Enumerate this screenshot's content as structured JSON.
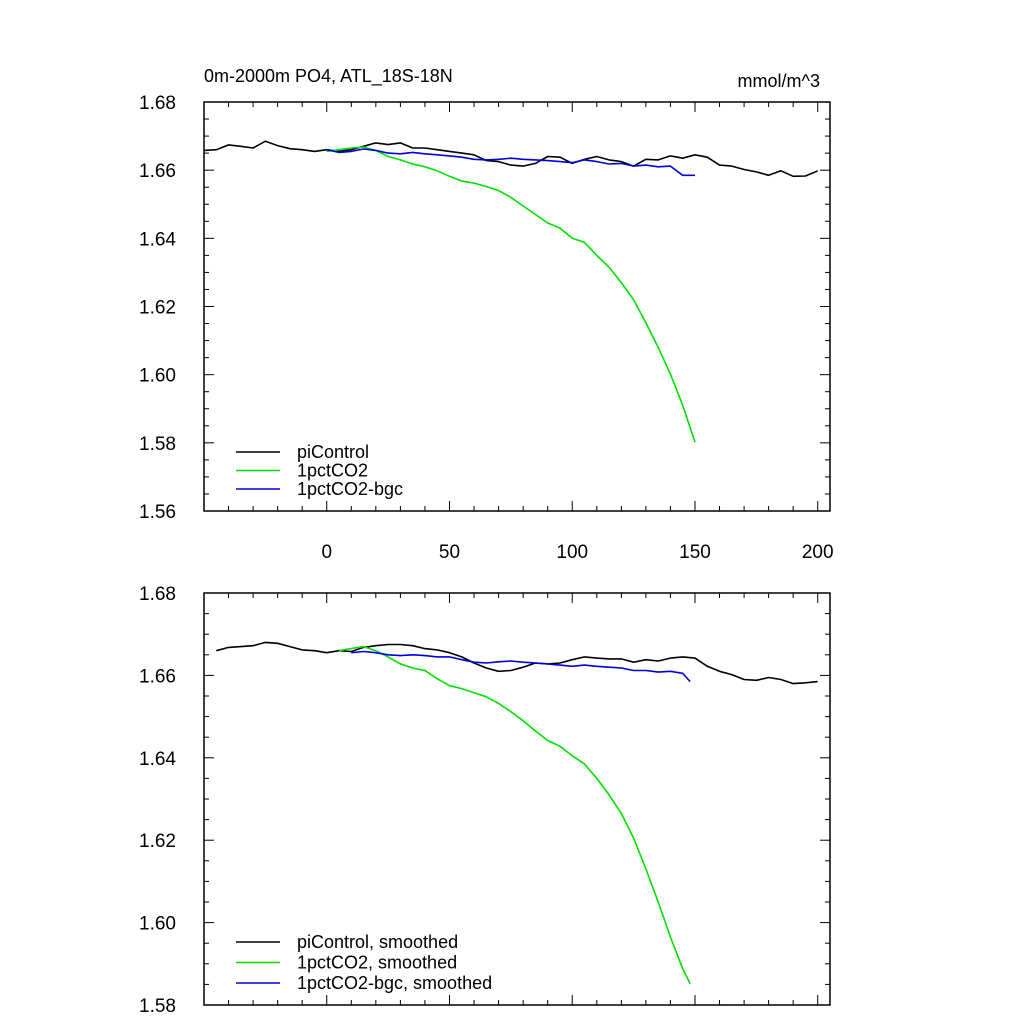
{
  "chart_data": [
    {
      "type": "line",
      "title": "0m-2000m PO4, ATL_18S-18N",
      "units": "mmol/m^3",
      "xlim": [
        -50,
        205
      ],
      "ylim": [
        1.56,
        1.68
      ],
      "x_ticks": [
        0,
        50,
        100,
        150,
        200
      ],
      "x_tick_labels": [
        "0",
        "50",
        "100",
        "150",
        "200"
      ],
      "y_ticks": [
        1.56,
        1.58,
        1.6,
        1.62,
        1.64,
        1.66,
        1.68
      ],
      "y_tick_labels": [
        "1.56",
        "1.58",
        "1.60",
        "1.62",
        "1.64",
        "1.66",
        "1.68"
      ],
      "legend_position": "bottom-left",
      "series": [
        {
          "name": "piControl",
          "color": "#000000",
          "x": [
            -50,
            -45,
            -40,
            -35,
            -30,
            -25,
            -20,
            -15,
            -10,
            -5,
            0,
            5,
            10,
            15,
            20,
            25,
            30,
            35,
            40,
            45,
            50,
            55,
            60,
            65,
            70,
            75,
            80,
            85,
            90,
            95,
            100,
            105,
            110,
            115,
            120,
            125,
            130,
            135,
            140,
            145,
            150,
            155,
            160,
            165,
            170,
            175,
            180,
            185,
            190,
            195,
            200
          ],
          "y": [
            1.6658,
            1.666,
            1.6674,
            1.667,
            1.6665,
            1.6685,
            1.6672,
            1.6663,
            1.666,
            1.6655,
            1.666,
            1.6655,
            1.666,
            1.667,
            1.668,
            1.6675,
            1.668,
            1.6665,
            1.6665,
            1.666,
            1.6655,
            1.665,
            1.6645,
            1.6628,
            1.6625,
            1.6615,
            1.6612,
            1.662,
            1.664,
            1.6638,
            1.662,
            1.6632,
            1.664,
            1.663,
            1.6625,
            1.6612,
            1.6632,
            1.663,
            1.6642,
            1.6635,
            1.6645,
            1.6638,
            1.6615,
            1.6612,
            1.6602,
            1.6595,
            1.6585,
            1.6598,
            1.6582,
            1.6583,
            1.6598
          ]
        },
        {
          "name": "1pctCO2",
          "color": "#00e000",
          "x": [
            0,
            5,
            10,
            15,
            20,
            25,
            30,
            35,
            40,
            45,
            50,
            55,
            60,
            65,
            70,
            75,
            80,
            85,
            90,
            95,
            100,
            105,
            110,
            115,
            120,
            125,
            130,
            135,
            140,
            145,
            150
          ],
          "y": [
            1.6655,
            1.666,
            1.6665,
            1.6668,
            1.6658,
            1.664,
            1.663,
            1.6618,
            1.661,
            1.6598,
            1.6582,
            1.6568,
            1.6562,
            1.6552,
            1.654,
            1.652,
            1.6495,
            1.647,
            1.6445,
            1.643,
            1.64,
            1.6388,
            1.635,
            1.6315,
            1.627,
            1.622,
            1.6152,
            1.608,
            1.6002,
            1.591,
            1.5802
          ]
        },
        {
          "name": "1pctCO2-bgc",
          "color": "#0000dd",
          "x": [
            0,
            5,
            10,
            15,
            20,
            25,
            30,
            35,
            40,
            45,
            50,
            55,
            60,
            65,
            70,
            75,
            80,
            85,
            90,
            95,
            100,
            105,
            110,
            115,
            120,
            125,
            130,
            135,
            140,
            145,
            150
          ],
          "y": [
            1.666,
            1.6652,
            1.6655,
            1.6662,
            1.6658,
            1.665,
            1.6648,
            1.6652,
            1.6648,
            1.6645,
            1.6642,
            1.6638,
            1.6632,
            1.663,
            1.6632,
            1.6635,
            1.6632,
            1.663,
            1.6628,
            1.6625,
            1.6622,
            1.663,
            1.6625,
            1.6618,
            1.662,
            1.6612,
            1.6615,
            1.661,
            1.6612,
            1.6585,
            1.6585
          ]
        }
      ]
    },
    {
      "type": "line",
      "xlim": [
        -50,
        205
      ],
      "ylim": [
        1.58,
        1.68
      ],
      "x_ticks": [
        0,
        50,
        100,
        150,
        200
      ],
      "y_ticks": [
        1.58,
        1.6,
        1.62,
        1.64,
        1.66,
        1.68
      ],
      "y_tick_labels": [
        "1.58",
        "1.60",
        "1.62",
        "1.64",
        "1.66",
        "1.68"
      ],
      "legend_position": "bottom-left",
      "series": [
        {
          "name": "piControl, smoothed",
          "color": "#000000",
          "x": [
            -45,
            -40,
            -35,
            -30,
            -25,
            -20,
            -15,
            -10,
            -5,
            0,
            5,
            10,
            15,
            20,
            25,
            30,
            35,
            40,
            45,
            50,
            55,
            60,
            65,
            70,
            75,
            80,
            85,
            90,
            95,
            100,
            105,
            110,
            115,
            120,
            125,
            130,
            135,
            140,
            145,
            150,
            155,
            160,
            165,
            170,
            175,
            180,
            185,
            190,
            195,
            200
          ],
          "y": [
            1.666,
            1.6668,
            1.667,
            1.6672,
            1.668,
            1.6678,
            1.667,
            1.6662,
            1.666,
            1.6655,
            1.666,
            1.6658,
            1.6668,
            1.6672,
            1.6675,
            1.6675,
            1.6672,
            1.6665,
            1.6662,
            1.6655,
            1.6645,
            1.663,
            1.6618,
            1.661,
            1.6612,
            1.662,
            1.663,
            1.6628,
            1.663,
            1.6638,
            1.6645,
            1.6642,
            1.664,
            1.664,
            1.6632,
            1.6638,
            1.6635,
            1.6642,
            1.6645,
            1.6642,
            1.6622,
            1.661,
            1.6602,
            1.659,
            1.6588,
            1.6595,
            1.659,
            1.658,
            1.6582,
            1.6585
          ]
        },
        {
          "name": "1pctCO2, smoothed",
          "color": "#00e000",
          "x": [
            5,
            10,
            15,
            20,
            25,
            30,
            35,
            40,
            45,
            50,
            55,
            60,
            65,
            70,
            75,
            80,
            85,
            90,
            95,
            100,
            105,
            110,
            115,
            120,
            125,
            130,
            135,
            140,
            145,
            148
          ],
          "y": [
            1.666,
            1.6665,
            1.667,
            1.666,
            1.6645,
            1.6628,
            1.6618,
            1.6612,
            1.6592,
            1.6575,
            1.6568,
            1.6558,
            1.6548,
            1.6532,
            1.6512,
            1.649,
            1.6465,
            1.6442,
            1.6428,
            1.6405,
            1.6385,
            1.635,
            1.631,
            1.6265,
            1.6205,
            1.613,
            1.605,
            1.5965,
            1.5888,
            1.5852
          ]
        },
        {
          "name": "1pctCO2-bgc, smoothed",
          "color": "#0000dd",
          "x": [
            10,
            15,
            20,
            25,
            30,
            35,
            40,
            45,
            50,
            55,
            60,
            65,
            70,
            75,
            80,
            85,
            90,
            95,
            100,
            105,
            110,
            115,
            120,
            125,
            130,
            135,
            140,
            145,
            148
          ],
          "y": [
            1.6655,
            1.6658,
            1.6655,
            1.665,
            1.6648,
            1.665,
            1.6648,
            1.6645,
            1.6645,
            1.6638,
            1.6632,
            1.663,
            1.6633,
            1.6635,
            1.6632,
            1.663,
            1.6628,
            1.6625,
            1.6622,
            1.6625,
            1.6622,
            1.662,
            1.6618,
            1.6612,
            1.6612,
            1.6608,
            1.661,
            1.6605,
            1.6585
          ]
        }
      ]
    }
  ]
}
